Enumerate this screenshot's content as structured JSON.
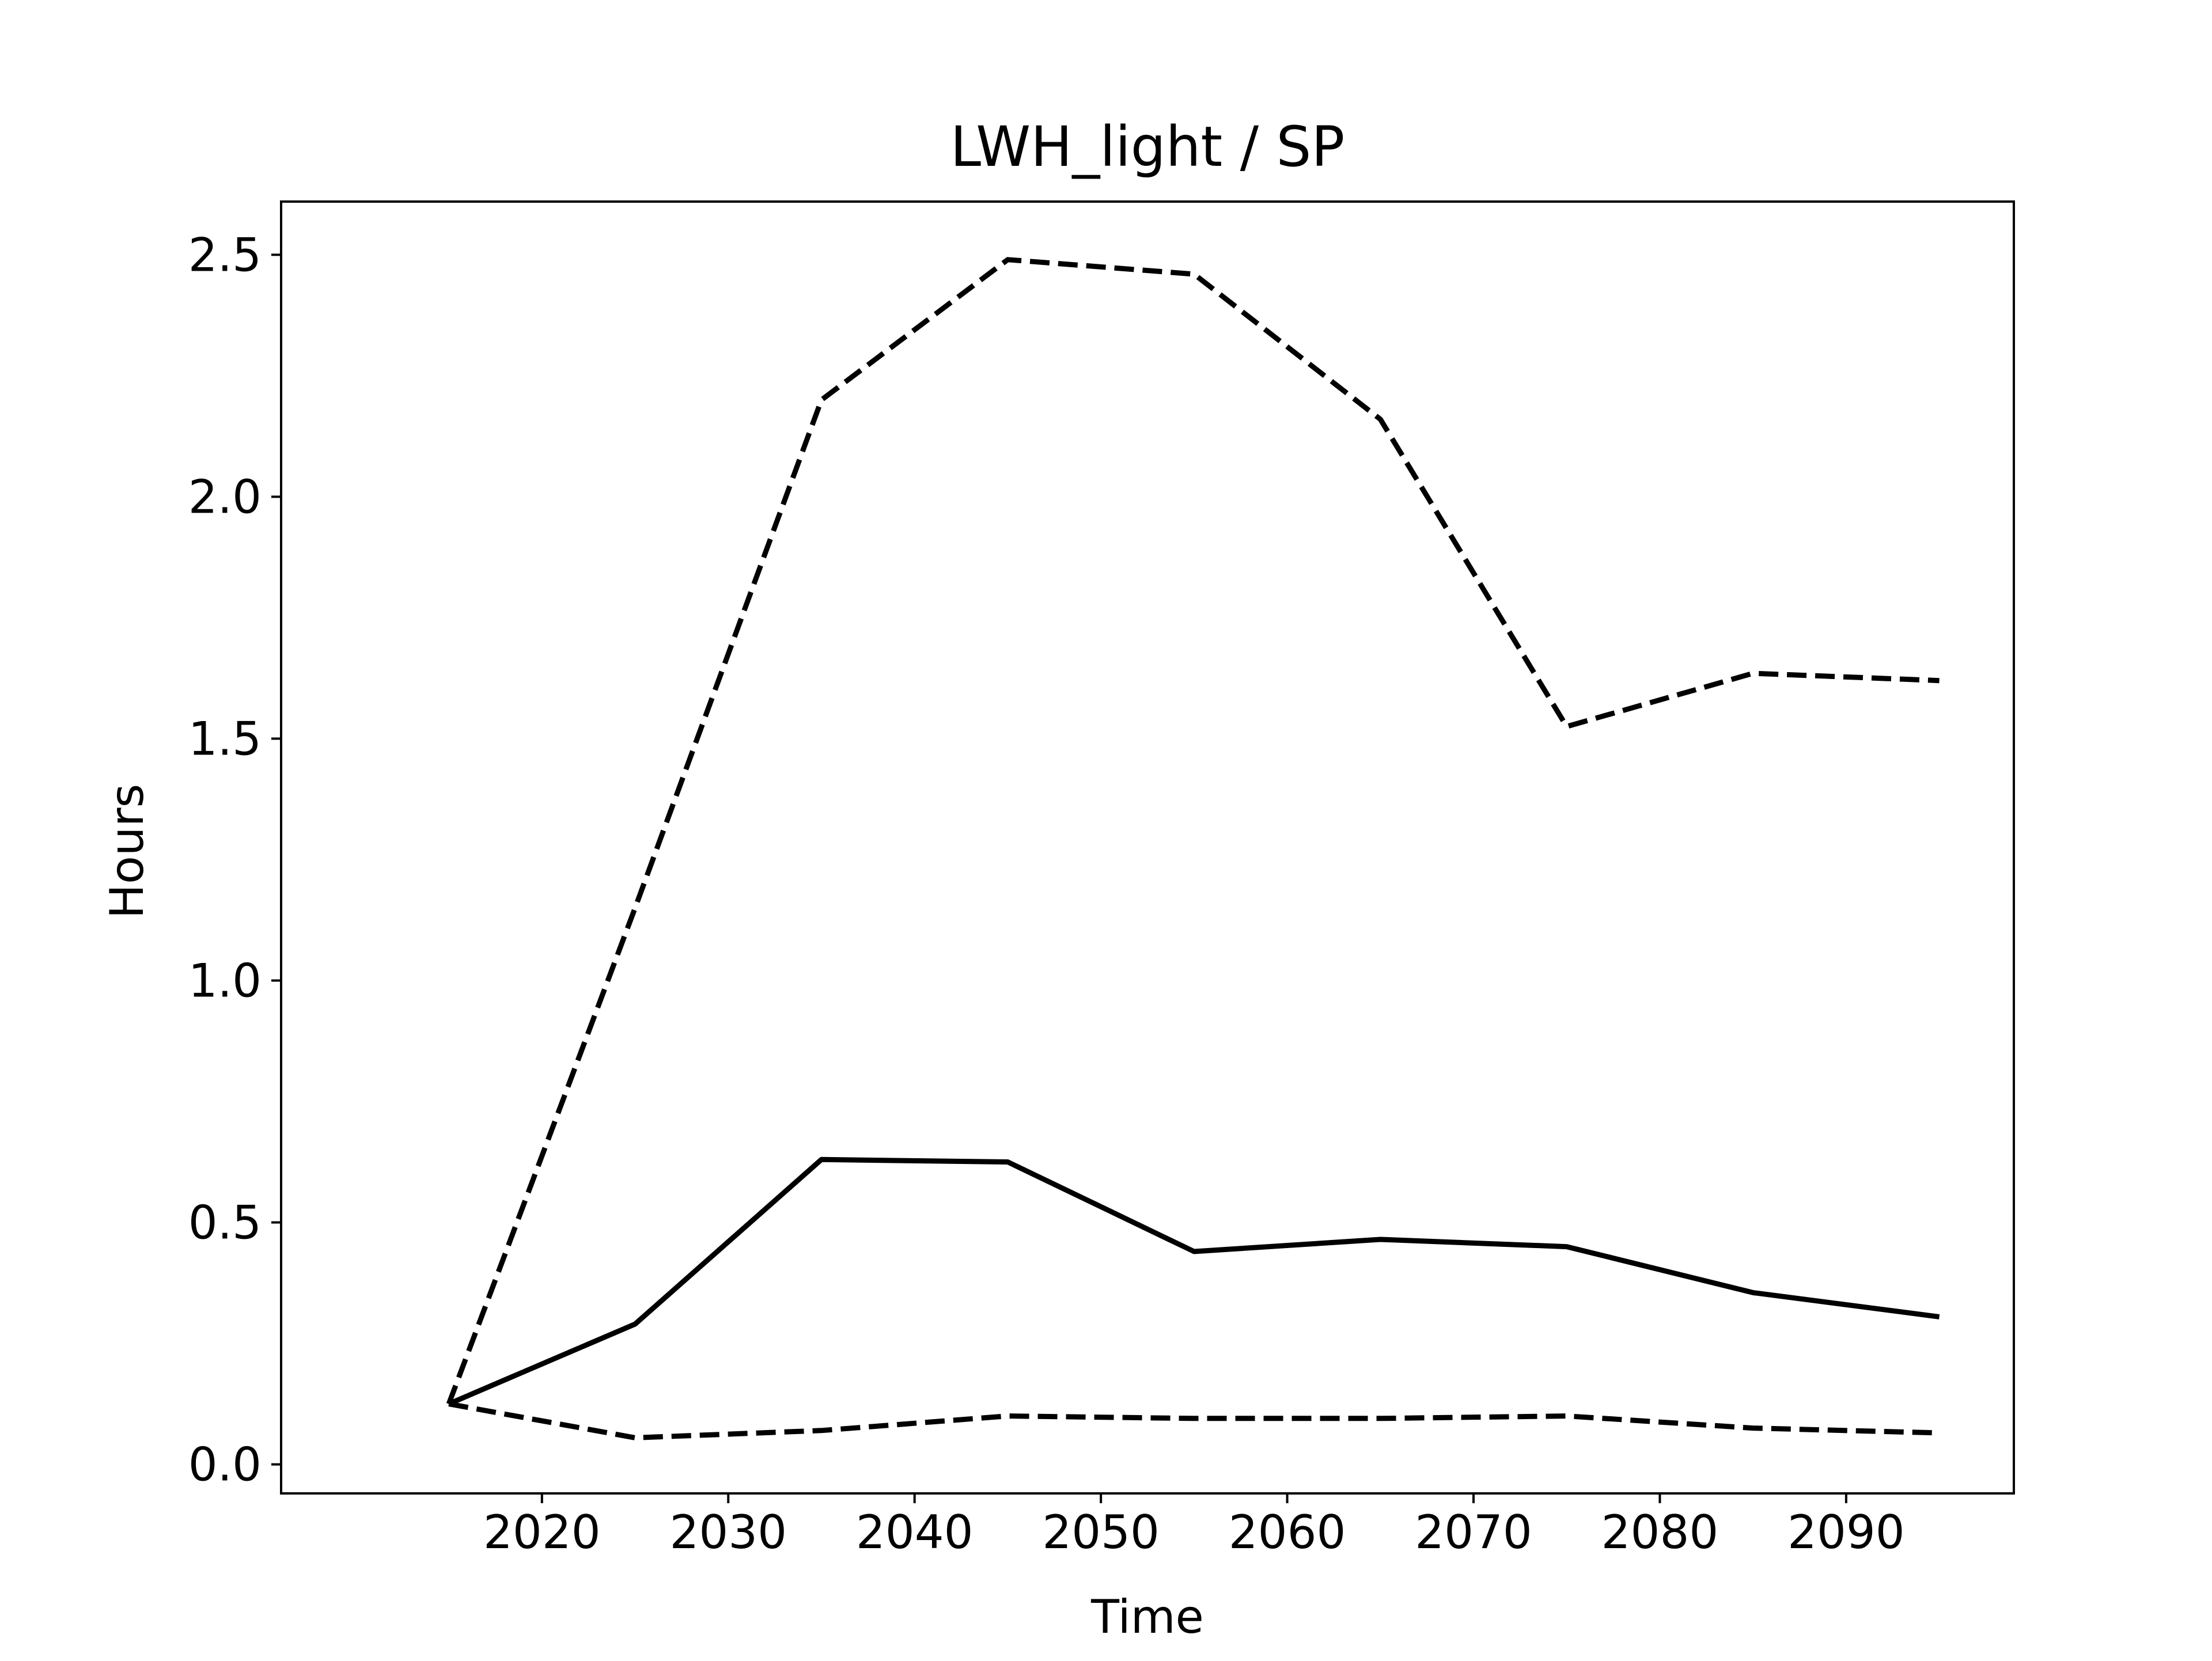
{
  "chart_data": {
    "type": "line",
    "title": "LWH_light / SP",
    "xlabel": "Time",
    "ylabel": "Hours",
    "x": [
      2015,
      2025,
      2035,
      2045,
      2055,
      2065,
      2075,
      2085,
      2095
    ],
    "xlim": [
      2006,
      2099
    ],
    "ylim": [
      -0.06,
      2.61
    ],
    "xticks": [
      2020,
      2030,
      2040,
      2050,
      2060,
      2070,
      2080,
      2090
    ],
    "yticks": [
      0.0,
      0.5,
      1.0,
      1.5,
      2.0,
      2.5
    ],
    "xtick_labels": [
      "2020",
      "2030",
      "2040",
      "2050",
      "2060",
      "2070",
      "2080",
      "2090"
    ],
    "ytick_labels": [
      "0.0",
      "0.5",
      "1.0",
      "1.5",
      "2.0",
      "2.5"
    ],
    "grid": false,
    "legend": "none",
    "series": [
      {
        "style": "solid",
        "color": "#000000",
        "values": [
          0.125,
          0.29,
          0.63,
          0.625,
          0.44,
          0.465,
          0.45,
          0.355,
          0.305
        ]
      },
      {
        "style": "dashed",
        "color": "#000000",
        "values": [
          0.125,
          1.15,
          2.2,
          2.49,
          2.46,
          2.16,
          1.525,
          1.635,
          1.62
        ]
      },
      {
        "style": "dashed",
        "color": "#000000",
        "values": [
          0.125,
          0.055,
          0.07,
          0.1,
          0.095,
          0.095,
          0.1,
          0.075,
          0.065
        ]
      }
    ]
  }
}
